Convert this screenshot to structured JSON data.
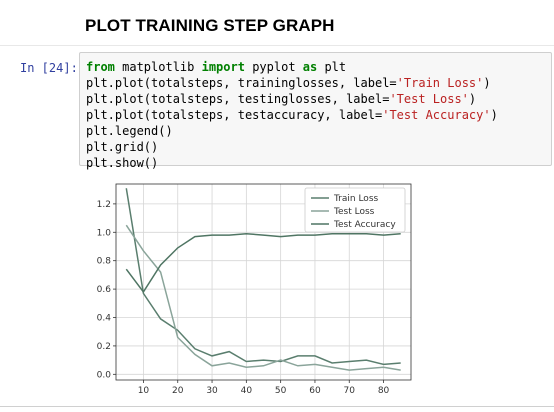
{
  "heading": "PLOT TRAINING STEP GRAPH",
  "cell": {
    "prompt": "In [24]:",
    "lines": [
      [
        {
          "t": "from",
          "c": "kw"
        },
        {
          "t": " matplotlib "
        },
        {
          "t": "import",
          "c": "kw"
        },
        {
          "t": " pyplot "
        },
        {
          "t": "as",
          "c": "kw"
        },
        {
          "t": " plt"
        }
      ],
      [
        {
          "t": "plt.plot(totalsteps, traininglosses, label="
        },
        {
          "t": "'Train Loss'",
          "c": "str"
        },
        {
          "t": ")"
        }
      ],
      [
        {
          "t": "plt.plot(totalsteps, testinglosses, label="
        },
        {
          "t": "'Test Loss'",
          "c": "str"
        },
        {
          "t": ")"
        }
      ],
      [
        {
          "t": "plt.plot(totalsteps, testaccuracy, label="
        },
        {
          "t": "'Test Accuracy'",
          "c": "str"
        },
        {
          "t": ")"
        }
      ],
      [
        {
          "t": "plt.legend()"
        }
      ],
      [
        {
          "t": "plt.grid()"
        }
      ],
      [
        {
          "t": "plt.show()"
        }
      ]
    ]
  },
  "chart_data": {
    "type": "line",
    "xlim": [
      2,
      88
    ],
    "ylim": [
      -0.04,
      1.34
    ],
    "xticks": [
      10,
      20,
      30,
      40,
      50,
      60,
      70,
      80
    ],
    "yticks": [
      0.0,
      0.2,
      0.4,
      0.6,
      0.8,
      1.0,
      1.2
    ],
    "grid": true,
    "legend_position": "top-right",
    "series": [
      {
        "name": "Train Loss",
        "color": "#5a7e6e",
        "x": [
          5,
          10,
          15,
          20,
          25,
          30,
          35,
          40,
          45,
          50,
          55,
          60,
          65,
          70,
          75,
          80,
          85
        ],
        "y": [
          1.31,
          0.57,
          0.39,
          0.31,
          0.18,
          0.13,
          0.16,
          0.09,
          0.1,
          0.09,
          0.13,
          0.13,
          0.08,
          0.09,
          0.1,
          0.07,
          0.08
        ]
      },
      {
        "name": "Test Loss",
        "color": "#8aa49a",
        "x": [
          5,
          10,
          15,
          20,
          25,
          30,
          35,
          40,
          45,
          50,
          55,
          60,
          65,
          70,
          75,
          80,
          85
        ],
        "y": [
          1.05,
          0.87,
          0.72,
          0.26,
          0.14,
          0.06,
          0.08,
          0.05,
          0.06,
          0.1,
          0.06,
          0.07,
          0.05,
          0.03,
          0.04,
          0.05,
          0.03
        ]
      },
      {
        "name": "Test Accuracy",
        "color": "#4f7563",
        "x": [
          5,
          10,
          15,
          20,
          25,
          30,
          35,
          40,
          45,
          50,
          55,
          60,
          65,
          70,
          75,
          80,
          85
        ],
        "y": [
          0.74,
          0.58,
          0.77,
          0.89,
          0.97,
          0.98,
          0.98,
          0.99,
          0.98,
          0.97,
          0.98,
          0.98,
          0.99,
          0.99,
          0.99,
          0.98,
          0.99
        ]
      }
    ]
  }
}
